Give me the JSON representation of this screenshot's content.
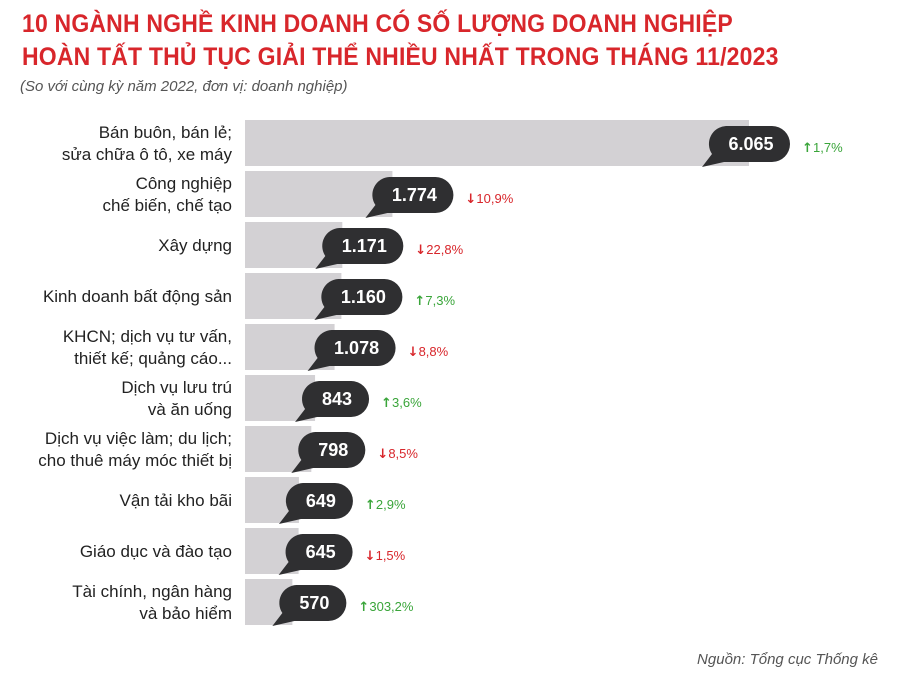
{
  "title_line1": "10 NGÀNH NGHỀ KINH DOANH CÓ SỐ LƯỢNG DOANH NGHIỆP",
  "title_line2": "HOÀN TẤT THỦ TỤC GIẢI THỂ NHIỀU NHẤT TRONG THÁNG 11/2023",
  "subtitle": "(So với cùng kỳ năm 2022, đơn vị: doanh nghiệp)",
  "source": "Nguồn: Tổng cục Thống kê",
  "colors": {
    "title": "#d8262b",
    "bar": "#d3d1d4",
    "bubble": "#2f2f31",
    "up": "#3aa53a",
    "down": "#d8262b"
  },
  "chart_data": {
    "type": "bar",
    "orientation": "horizontal",
    "title": "10 NGÀNH NGHỀ KINH DOANH CÓ SỐ LƯỢNG DOANH NGHIỆP HOÀN TẤT THỦ TỤC GIẢI THỂ NHIỀU NHẤT TRONG THÁNG 11/2023",
    "subtitle": "(So với cùng kỳ năm 2022, đơn vị: doanh nghiệp)",
    "categories": [
      [
        "Bán buôn, bán lẻ;",
        "sửa chữa ô tô, xe máy"
      ],
      [
        "Công nghiệp",
        "chế biến, chế tạo"
      ],
      [
        "Xây dựng"
      ],
      [
        "Kinh doanh bất động sản"
      ],
      [
        "KHCN; dịch vụ tư vấn,",
        "thiết kế; quảng cáo..."
      ],
      [
        "Dịch vụ lưu trú",
        "và ăn uống"
      ],
      [
        "Dịch vụ việc làm; du lịch;",
        "cho thuê máy móc thiết bị"
      ],
      [
        "Vận tải kho bãi"
      ],
      [
        "Giáo dục và đào tạo"
      ],
      [
        "Tài chính, ngân hàng",
        "và bảo hiểm"
      ]
    ],
    "values": [
      6065,
      1774,
      1171,
      1160,
      1078,
      843,
      798,
      649,
      645,
      570
    ],
    "value_labels": [
      "6.065",
      "1.774",
      "1.171",
      "1.160",
      "1.078",
      "843",
      "798",
      "649",
      "645",
      "570"
    ],
    "change_labels": [
      "1,7%",
      "10,9%",
      "22,8%",
      "7,3%",
      "8,8%",
      "3,6%",
      "8,5%",
      "2,9%",
      "1,5%",
      "303,2%"
    ],
    "change_direction": [
      "up",
      "down",
      "down",
      "up",
      "down",
      "up",
      "down",
      "up",
      "down",
      "up"
    ],
    "xlim": [
      0,
      6065
    ],
    "grid": false,
    "legend": "none"
  }
}
